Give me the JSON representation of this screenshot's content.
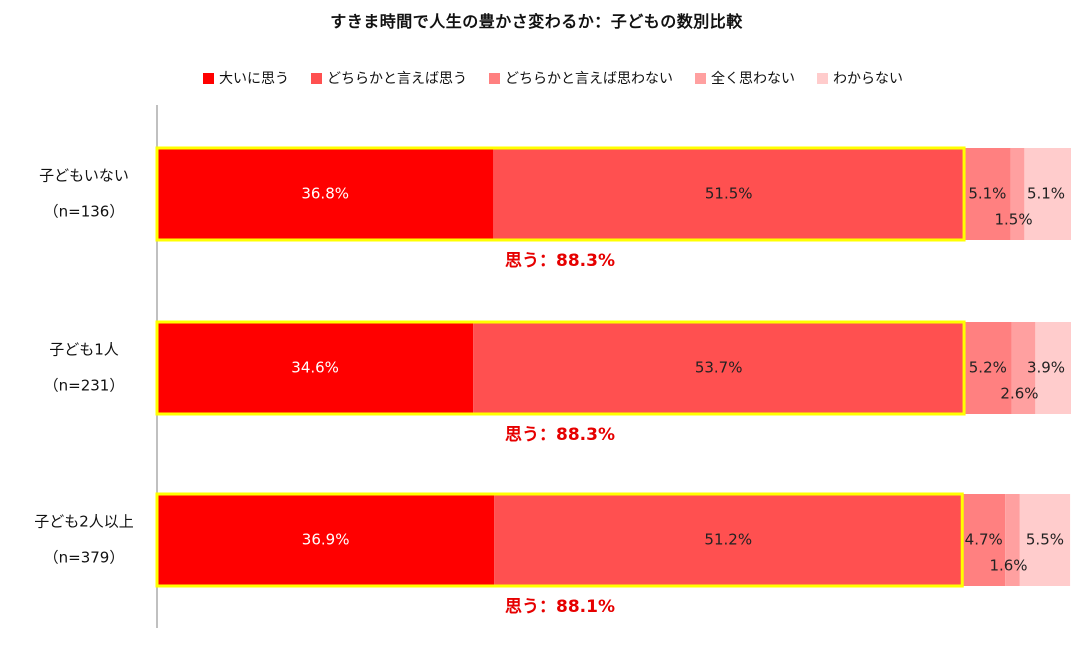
{
  "chart_data": {
    "type": "bar",
    "orientation": "horizontal",
    "stacked": true,
    "title": "すきま時間で人生の豊かさ変わるか：子どもの数別比較",
    "categories": [
      "子どもいない",
      "子ども1人",
      "子ども2人以上"
    ],
    "sample_sizes": [
      "（n=136）",
      "（n=231）",
      "（n=379）"
    ],
    "series": [
      {
        "name": "大いに思う",
        "color": "#ff0000",
        "values": [
          36.8,
          34.6,
          36.9
        ]
      },
      {
        "name": "どちらかと言えば思う",
        "color": "#ff5050",
        "values": [
          51.5,
          53.7,
          51.2
        ]
      },
      {
        "name": "どちらかと言えば思わない",
        "color": "#ff8080",
        "values": [
          5.1,
          5.2,
          4.7
        ]
      },
      {
        "name": "全く思わない",
        "color": "#ffa0a0",
        "values": [
          1.5,
          2.6,
          1.6
        ]
      },
      {
        "name": "わからない",
        "color": "#ffcccc",
        "values": [
          5.1,
          3.9,
          5.5
        ]
      }
    ],
    "value_labels": [
      [
        "36.8%",
        "51.5%",
        "5.1%",
        "1.5%",
        "5.1%"
      ],
      [
        "34.6%",
        "53.7%",
        "5.2%",
        "2.6%",
        "3.9%"
      ],
      [
        "36.9%",
        "51.2%",
        "4.7%",
        "1.6%",
        "5.5%"
      ]
    ],
    "totals": [
      "思う：88.3%",
      "思う：88.3%",
      "思う：88.1%"
    ],
    "highlight_color": "#ffff00",
    "total_label_color": "#e60000",
    "xlim": [
      0,
      100
    ],
    "legend_position": "top",
    "grid": false
  }
}
